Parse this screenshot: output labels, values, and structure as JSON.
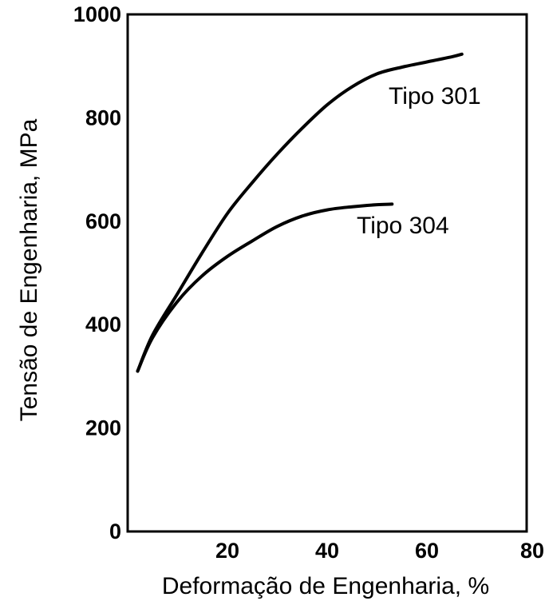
{
  "chart_data": {
    "type": "line",
    "xlabel": "Deformação de Engenharia, %",
    "ylabel": "Tensão de Engenharia, MPa",
    "xlim": [
      0,
      80
    ],
    "ylim": [
      0,
      1000
    ],
    "xticks": [
      20,
      40,
      60,
      80
    ],
    "yticks": [
      0,
      200,
      400,
      600,
      800,
      1000
    ],
    "grid": false,
    "legend": "none",
    "series": [
      {
        "name": "Tipo 301",
        "x": [
          2,
          5,
          10,
          15,
          20,
          25,
          30,
          35,
          40,
          45,
          50,
          55,
          60,
          65,
          67
        ],
        "y": [
          310,
          380,
          460,
          540,
          615,
          675,
          730,
          780,
          825,
          860,
          885,
          898,
          908,
          918,
          923
        ]
      },
      {
        "name": "Tipo 304",
        "x": [
          2,
          5,
          10,
          15,
          20,
          25,
          30,
          35,
          40,
          45,
          50,
          53
        ],
        "y": [
          310,
          375,
          445,
          495,
          532,
          562,
          590,
          610,
          622,
          628,
          632,
          633
        ]
      }
    ],
    "colors": {
      "line": "#000000",
      "axis": "#000000",
      "background": "#ffffff"
    }
  }
}
